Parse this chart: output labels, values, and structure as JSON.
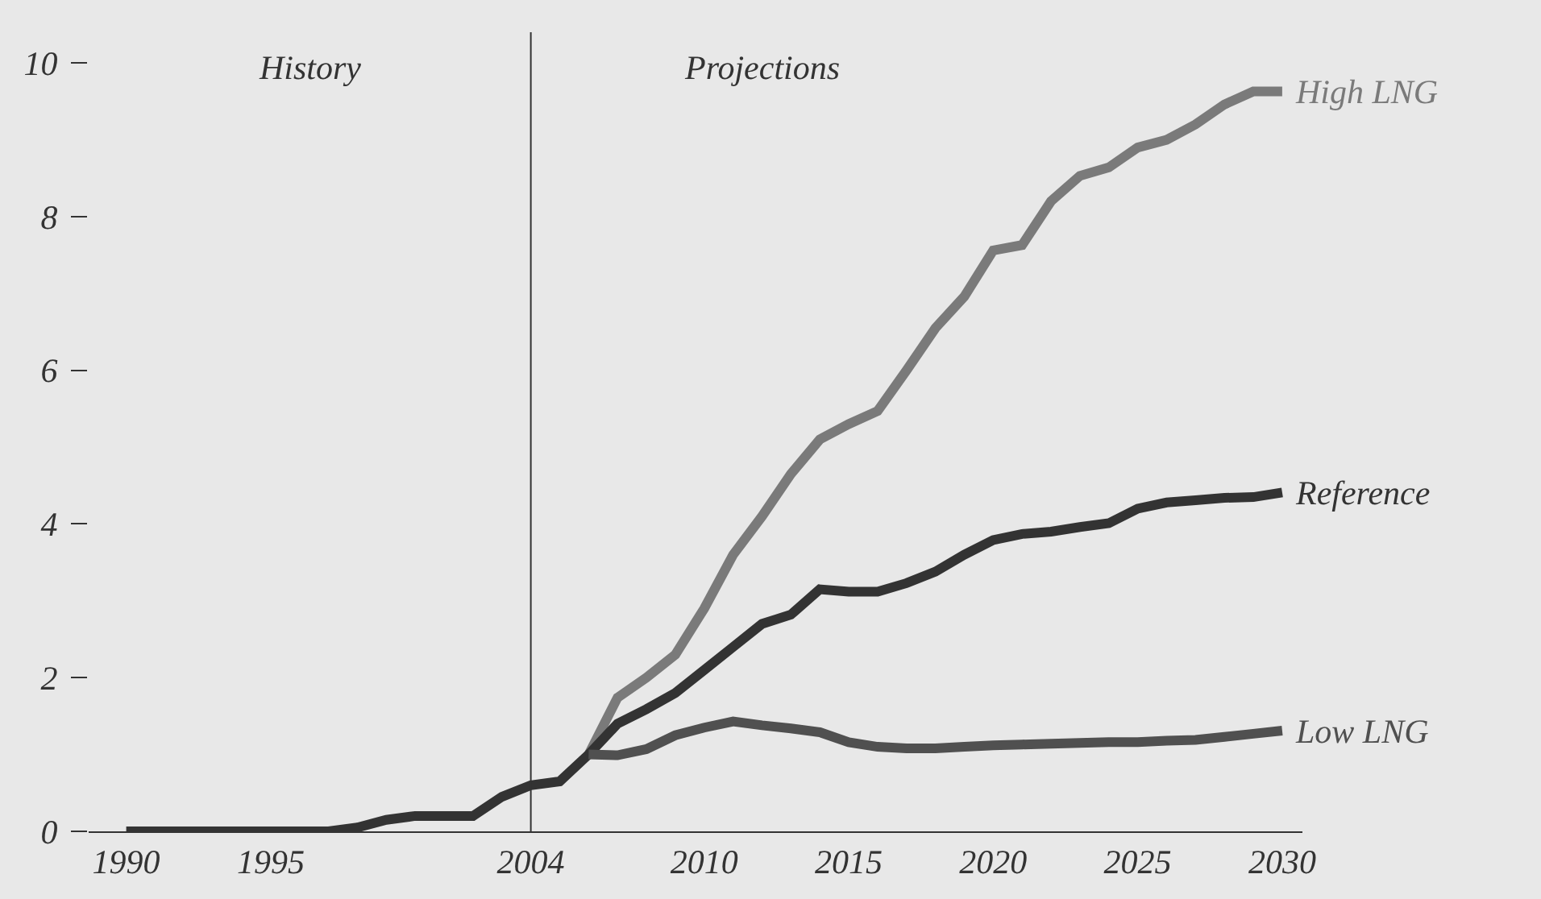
{
  "chart_data": {
    "type": "line",
    "xlim": [
      1988.7,
      2030.7
    ],
    "xticks": [
      1990,
      1995,
      2004,
      2010,
      2015,
      2020,
      2025,
      2030
    ],
    "ylim": [
      0,
      10.4
    ],
    "yticks": [
      0,
      2,
      4,
      6,
      8,
      10
    ],
    "grid": false,
    "legend": false,
    "marker": "none",
    "line_style": "solid",
    "series": [
      {
        "name": "High LNG",
        "color": "#7a7a7a",
        "x": [
          2006,
          2007,
          2008,
          2009,
          2010,
          2011,
          2012,
          2013,
          2014,
          2015,
          2016,
          2017,
          2018,
          2019,
          2020,
          2021,
          2022,
          2023,
          2024,
          2025,
          2026,
          2027,
          2028,
          2029,
          2030
        ],
        "values": [
          1.0,
          1.74,
          2.0,
          2.3,
          2.9,
          3.6,
          4.1,
          4.65,
          5.1,
          5.3,
          5.47,
          6.0,
          6.55,
          6.96,
          7.56,
          7.63,
          8.2,
          8.53,
          8.64,
          8.9,
          9.0,
          9.2,
          9.46,
          9.63,
          9.63
        ]
      },
      {
        "name": "Reference",
        "color": "#333333",
        "x": [
          1990,
          1991,
          1992,
          1993,
          1994,
          1995,
          1996,
          1997,
          1998,
          1999,
          2000,
          2001,
          2002,
          2003,
          2004,
          2005,
          2006,
          2007,
          2008,
          2009,
          2010,
          2011,
          2012,
          2013,
          2014,
          2015,
          2016,
          2017,
          2018,
          2019,
          2020,
          2021,
          2022,
          2023,
          2024,
          2025,
          2026,
          2027,
          2028,
          2029,
          2030
        ],
        "values": [
          0,
          0,
          0,
          0,
          0,
          0,
          0,
          0,
          0.05,
          0.15,
          0.2,
          0.2,
          0.2,
          0.45,
          0.6,
          0.65,
          1.0,
          1.4,
          1.59,
          1.8,
          2.1,
          2.4,
          2.7,
          2.82,
          3.15,
          3.12,
          3.12,
          3.23,
          3.38,
          3.6,
          3.79,
          3.87,
          3.9,
          3.96,
          4.01,
          4.2,
          4.28,
          4.31,
          4.34,
          4.35,
          4.41
        ]
      },
      {
        "name": "Low LNG",
        "color": "#505050",
        "x": [
          2006,
          2007,
          2008,
          2009,
          2010,
          2011,
          2012,
          2013,
          2014,
          2015,
          2016,
          2017,
          2018,
          2019,
          2020,
          2021,
          2022,
          2023,
          2024,
          2025,
          2026,
          2027,
          2028,
          2029,
          2030
        ],
        "values": [
          1.0,
          0.99,
          1.07,
          1.25,
          1.35,
          1.43,
          1.38,
          1.34,
          1.29,
          1.16,
          1.1,
          1.08,
          1.08,
          1.1,
          1.12,
          1.13,
          1.14,
          1.15,
          1.16,
          1.16,
          1.18,
          1.19,
          1.23,
          1.27,
          1.31
        ]
      }
    ],
    "ref_lines": [
      {
        "axis": "x",
        "value": 2004,
        "color": "#333333"
      }
    ],
    "annotations": [
      "History",
      "Projections"
    ]
  }
}
